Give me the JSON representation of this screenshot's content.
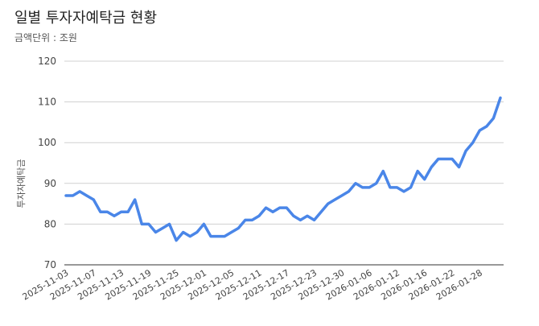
{
  "chart_data": {
    "type": "line",
    "title": "일별 투자자예탁금 현황",
    "subtitle": "금액단위 : 조원",
    "ylabel": "투자자예탁금",
    "xlabel": "",
    "ylim": [
      70,
      120
    ],
    "yticks": [
      70,
      80,
      90,
      100,
      110,
      120
    ],
    "grid": true,
    "legend": "none",
    "color": "#4a86e8",
    "x_tick_labels": [
      "2025-11-03",
      "2025-11-07",
      "2025-11-13",
      "2025-11-19",
      "2025-11-25",
      "2025-12-01",
      "2025-12-05",
      "2025-12-11",
      "2025-12-17",
      "2025-12-23",
      "2025-12-30",
      "2026-01-06",
      "2026-01-12",
      "2026-01-16",
      "2026-01-22",
      "2026-01-28"
    ],
    "x_tick_index": [
      0,
      4,
      8,
      12,
      16,
      20,
      24,
      28,
      32,
      36,
      40,
      44,
      48,
      52,
      56,
      60
    ],
    "series": [
      {
        "name": "",
        "values": [
          87,
          87,
          88,
          87,
          86,
          83,
          83,
          82,
          83,
          83,
          86,
          80,
          80,
          78,
          79,
          80,
          76,
          78,
          77,
          78,
          80,
          77,
          77,
          77,
          78,
          79,
          81,
          81,
          82,
          84,
          83,
          84,
          84,
          82,
          81,
          82,
          81,
          83,
          85,
          86,
          87,
          88,
          90,
          89,
          89,
          90,
          93,
          89,
          89,
          88,
          89,
          93,
          91,
          94,
          96,
          96,
          96,
          94,
          98,
          100,
          103,
          104,
          106,
          111
        ]
      }
    ]
  }
}
